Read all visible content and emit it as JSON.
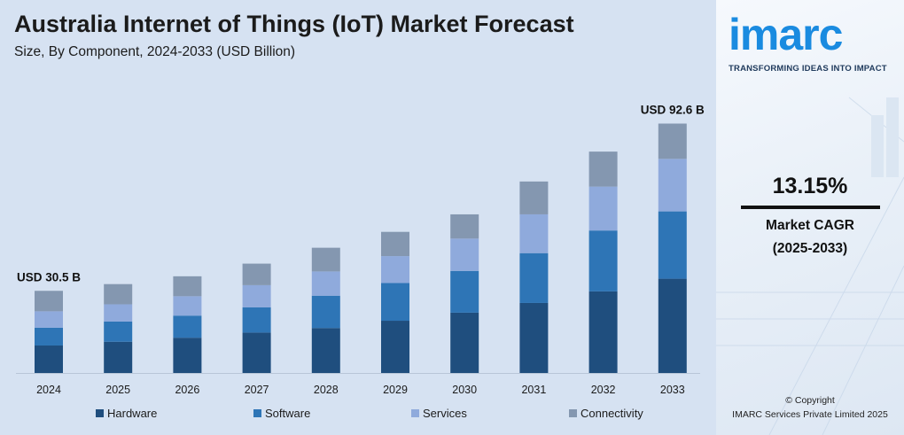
{
  "header": {
    "title": "Australia Internet of Things (IoT) Market Forecast",
    "subtitle": "Size, By Component, 2024-2033 (USD Billion)"
  },
  "chart_data": {
    "type": "bar",
    "stacked": true,
    "categories": [
      "2024",
      "2025",
      "2026",
      "2027",
      "2028",
      "2029",
      "2030",
      "2031",
      "2032",
      "2033"
    ],
    "series": [
      {
        "name": "Hardware",
        "color": "#1f4e7e",
        "values": [
          10.2,
          11.6,
          13.1,
          15.0,
          16.7,
          19.4,
          22.4,
          26.0,
          30.3,
          35.0
        ]
      },
      {
        "name": "Software",
        "color": "#2e75b6",
        "values": [
          6.6,
          7.5,
          8.2,
          9.4,
          12.0,
          14.0,
          15.5,
          18.5,
          22.6,
          25.0
        ]
      },
      {
        "name": "Services",
        "color": "#8faadc",
        "values": [
          6.1,
          6.4,
          7.2,
          8.2,
          9.0,
          10.0,
          12.0,
          14.4,
          16.3,
          19.5
        ]
      },
      {
        "name": "Connectivity",
        "color": "#8497b0",
        "values": [
          7.6,
          7.5,
          7.4,
          8.0,
          8.8,
          9.0,
          9.0,
          12.2,
          13.0,
          13.1
        ]
      }
    ],
    "annotations": [
      {
        "category": "2024",
        "label": "USD 30.5 B"
      },
      {
        "category": "2033",
        "label": "USD 92.6 B"
      }
    ],
    "ylim": [
      0,
      100
    ],
    "grid": false,
    "legend": "bottom"
  },
  "brand": {
    "logo": "imarc",
    "tagline": "TRANSFORMING IDEAS INTO IMPACT",
    "logo_color": "#1a8be0"
  },
  "cagr": {
    "value": "13.15%",
    "label": "Market CAGR",
    "period": "(2025-2033)"
  },
  "footer": {
    "copyright_line1": "© Copyright",
    "copyright_line2": "IMARC Services Private Limited 2025"
  }
}
